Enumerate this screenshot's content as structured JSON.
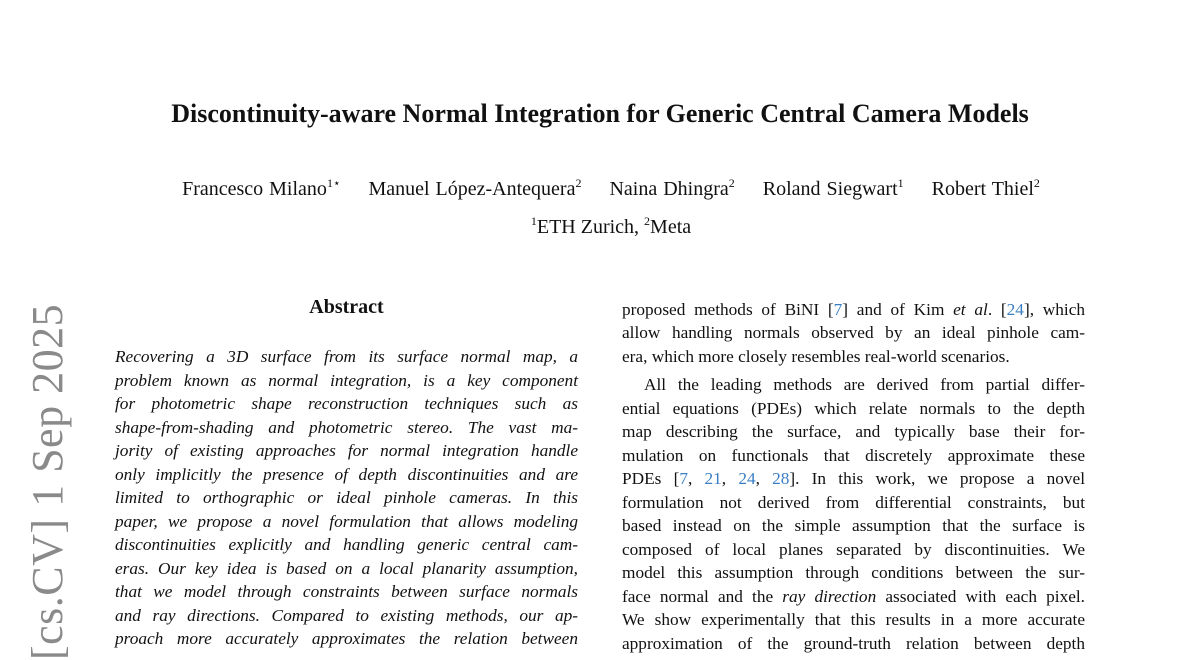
{
  "title": "Discontinuity-aware Normal Integration for Generic Central Camera Models",
  "authors": [
    {
      "name": "Francesco Milano",
      "sup": "1⋆"
    },
    {
      "name": "Manuel López-Antequera",
      "sup": "2"
    },
    {
      "name": "Naina Dhingra",
      "sup": "2"
    },
    {
      "name": "Roland Siegwart",
      "sup": "1"
    },
    {
      "name": "Robert Thiel",
      "sup": "2"
    }
  ],
  "affiliations": [
    {
      "sup": "1",
      "name": "ETH Zurich, "
    },
    {
      "sup": "2",
      "name": "Meta"
    }
  ],
  "arxiv_stamp": "[cs.CV]  1 Sep 2025",
  "abstract": {
    "heading": "Abstract",
    "lines": [
      "Recovering a 3D surface from its surface normal map, a",
      "problem known as normal integration, is a key component",
      "for photometric shape reconstruction techniques such as",
      "shape-from-shading and photometric stereo. The vast ma-",
      "jority of existing approaches for normal integration handle",
      "only implicitly the presence of depth discontinuities and are",
      "limited to orthographic or ideal pinhole cameras. In this",
      "paper, we propose a novel formulation that allows modeling",
      "discontinuities explicitly and handling generic central cam-",
      "eras. Our key idea is based on a local planarity assumption,",
      "that we model through constraints between surface normals",
      "and ray directions. Compared to existing methods, our ap-",
      "proach more accurately approximates the relation between"
    ]
  },
  "right_column": {
    "lines": [
      [
        [
          "proposed methods of BiNI [",
          ""
        ],
        [
          "7",
          "cite"
        ],
        [
          "] and of Kim ",
          ""
        ],
        [
          "et al",
          "it"
        ],
        [
          ". [",
          ""
        ],
        [
          "24",
          "cite"
        ],
        [
          "], which",
          ""
        ]
      ],
      [
        [
          "allow handling normals observed by an ideal pinhole cam-",
          ""
        ]
      ],
      [
        [
          "era, which more closely resembles real-world scenarios.",
          ""
        ]
      ],
      [
        [
          "All the leading methods are derived from partial differ-",
          ""
        ]
      ],
      [
        [
          "ential equations (PDEs) which relate normals to the depth",
          ""
        ]
      ],
      [
        [
          "map describing the surface, and typically base their for-",
          ""
        ]
      ],
      [
        [
          "mulation on functionals that discretely approximate these",
          ""
        ]
      ],
      [
        [
          "PDEs [",
          ""
        ],
        [
          "7",
          "cite"
        ],
        [
          ", ",
          ""
        ],
        [
          "21",
          "cite"
        ],
        [
          ", ",
          ""
        ],
        [
          "24",
          "cite"
        ],
        [
          ", ",
          ""
        ],
        [
          "28",
          "cite"
        ],
        [
          "].  In this work, we propose a novel",
          ""
        ]
      ],
      [
        [
          "formulation not derived from differential constraints, but",
          ""
        ]
      ],
      [
        [
          "based instead on the simple assumption that the surface is",
          ""
        ]
      ],
      [
        [
          "composed of local planes separated by discontinuities. We",
          ""
        ]
      ],
      [
        [
          "model this assumption through conditions between the sur-",
          ""
        ]
      ],
      [
        [
          "face normal and the ",
          ""
        ],
        [
          "ray direction",
          "it"
        ],
        [
          " associated with each pixel.",
          ""
        ]
      ],
      [
        [
          "We show experimentally that this results in a more accurate",
          ""
        ]
      ],
      [
        [
          "approximation of the ground-truth relation between depth",
          ""
        ]
      ]
    ]
  },
  "colors": {
    "citation": "#3a7fc4",
    "stamp": "#8a8a8a"
  }
}
